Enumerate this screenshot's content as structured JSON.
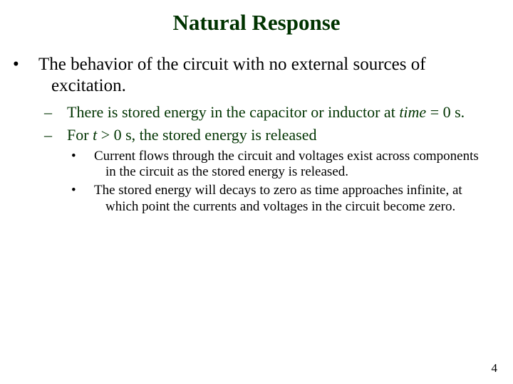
{
  "title": "Natural Response",
  "title_color": "#003300",
  "title_fontsize": 31,
  "title_fontweight": "bold",
  "body_font": "Times New Roman",
  "background_color": "#ffffff",
  "bullet_lvl1_char": "•",
  "bullet_lvl2_char": "–",
  "bullet_lvl3_char": "•",
  "lvl1_fontsize": 25,
  "lvl1_color": "#000000",
  "lvl2_fontsize": 22,
  "lvl2_color": "#003300",
  "lvl3_fontsize": 19,
  "lvl3_color": "#000000",
  "lvl1_text": "The behavior of the circuit with no external sources of excitation.",
  "lvl2_a_pre": "There is stored energy in the capacitor or inductor at ",
  "lvl2_a_time": "time",
  "lvl2_a_post": " = 0 s.",
  "lvl2_b_pre": "For ",
  "lvl2_b_t": "t",
  "lvl2_b_post": " > 0 s, the stored energy is released",
  "lvl3_a": "Current flows through the circuit and voltages exist across components in the circuit as the stored energy is released.",
  "lvl3_b": "The stored energy will decays to zero as time approaches infinite, at which point the currents and voltages in the circuit become zero.",
  "page_number": "4",
  "slide_width": 720,
  "slide_height": 540
}
